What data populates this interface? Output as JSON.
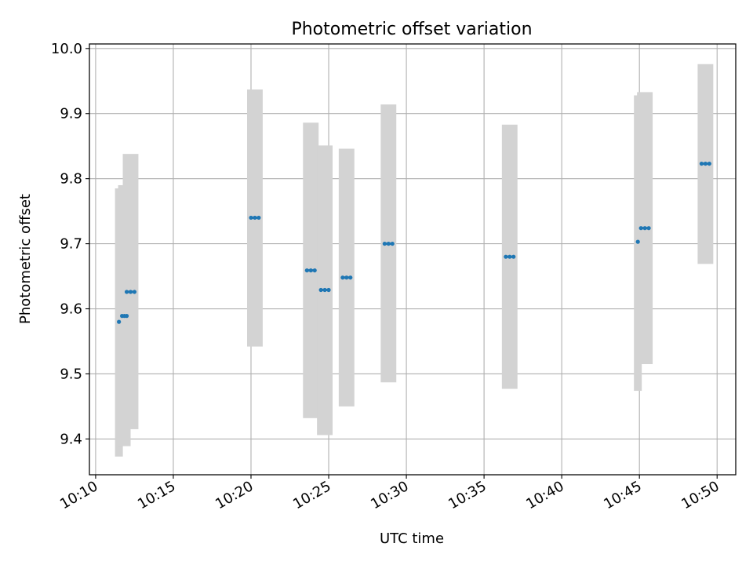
{
  "chart_data": {
    "type": "scatter",
    "title": "Photometric offset variation",
    "xlabel": "UTC time",
    "ylabel": "Photometric offset",
    "x_unit": "time (HH:MM, UTC)",
    "xlim": [
      "10:09.6",
      "10:51.2"
    ],
    "ylim": [
      9.345,
      10.007
    ],
    "x_ticks": [
      "10:10",
      "10:15",
      "10:20",
      "10:25",
      "10:30",
      "10:35",
      "10:40",
      "10:45",
      "10:50"
    ],
    "y_ticks": [
      9.4,
      9.5,
      9.6,
      9.7,
      9.8,
      9.9,
      10.0
    ],
    "y_tick_labels": [
      "9.4",
      "9.5",
      "9.6",
      "9.7",
      "9.8",
      "9.9",
      "10.0"
    ],
    "grid": true,
    "x_tick_rotation": "30 degrees",
    "series": [
      {
        "marker_color": "#1f77b4",
        "band_color": "#d3d3d3",
        "points": [
          {
            "t_start": "10:11.5",
            "t_end": "10:11.5",
            "y": 9.58,
            "y_low": 9.373,
            "y_high": 9.785
          },
          {
            "t_start": "10:11.7",
            "t_end": "10:12.0",
            "y": 9.589,
            "y_low": 9.389,
            "y_high": 9.79
          },
          {
            "t_start": "10:12.0",
            "t_end": "10:12.5",
            "y": 9.626,
            "y_low": 9.415,
            "y_high": 9.838
          },
          {
            "t_start": "10:20.0",
            "t_end": "10:20.5",
            "y": 9.74,
            "y_low": 9.542,
            "y_high": 9.937
          },
          {
            "t_start": "10:23.6",
            "t_end": "10:24.1",
            "y": 9.659,
            "y_low": 9.432,
            "y_high": 9.886
          },
          {
            "t_start": "10:24.5",
            "t_end": "10:25.0",
            "y": 9.629,
            "y_low": 9.406,
            "y_high": 9.851
          },
          {
            "t_start": "10:25.9",
            "t_end": "10:26.4",
            "y": 9.648,
            "y_low": 9.45,
            "y_high": 9.846
          },
          {
            "t_start": "10:28.6",
            "t_end": "10:29.1",
            "y": 9.7,
            "y_low": 9.487,
            "y_high": 9.914
          },
          {
            "t_start": "10:36.4",
            "t_end": "10:36.9",
            "y": 9.68,
            "y_low": 9.477,
            "y_high": 9.883
          },
          {
            "t_start": "10:44.9",
            "t_end": "10:44.9",
            "y": 9.703,
            "y_low": 9.474,
            "y_high": 9.928
          },
          {
            "t_start": "10:45.1",
            "t_end": "10:45.6",
            "y": 9.724,
            "y_low": 9.515,
            "y_high": 9.933
          },
          {
            "t_start": "10:49.0",
            "t_end": "10:49.5",
            "y": 9.823,
            "y_low": 9.669,
            "y_high": 9.976
          }
        ]
      }
    ]
  }
}
